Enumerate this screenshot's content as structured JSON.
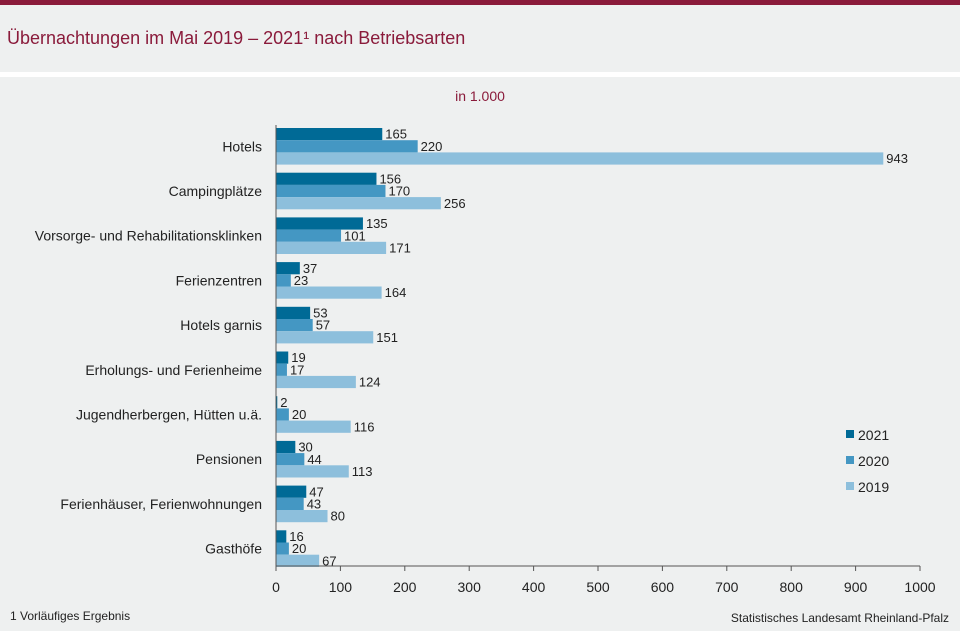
{
  "header": {
    "title": "Übernachtungen im Mai 2019 – 2021¹ nach Betriebsarten",
    "unit": "in 1.000"
  },
  "footer": {
    "footnote": "1 Vorläufiges Ergebnis",
    "source": "Statistisches Landesamt Rheinland-Pfalz"
  },
  "colors": {
    "2021": "#006a96",
    "2020": "#4497c3",
    "2019": "#8dbfdc",
    "accent": "#8a1b3b"
  },
  "chart_data": {
    "type": "bar",
    "orientation": "horizontal",
    "categories": [
      "Hotels",
      "Campingplätze",
      "Vorsorge- und Rehabilitationsklinken",
      "Ferienzentren",
      "Hotels garnis",
      "Erholungs- und Ferienheime",
      "Jugendherbergen, Hütten u.ä.",
      "Pensionen",
      "Ferienhäuser, Ferienwohnungen",
      "Gasthöfe"
    ],
    "series": [
      {
        "name": "2021",
        "values": [
          165,
          156,
          135,
          37,
          53,
          19,
          2,
          30,
          47,
          16
        ]
      },
      {
        "name": "2020",
        "values": [
          220,
          170,
          101,
          23,
          57,
          17,
          20,
          44,
          43,
          20
        ]
      },
      {
        "name": "2019",
        "values": [
          943,
          256,
          171,
          164,
          151,
          124,
          116,
          113,
          80,
          67
        ]
      }
    ],
    "xlim": [
      0,
      1000
    ],
    "xticks": [
      0,
      100,
      200,
      300,
      400,
      500,
      600,
      700,
      800,
      900,
      1000
    ],
    "grid": false,
    "legend_position": "right"
  }
}
